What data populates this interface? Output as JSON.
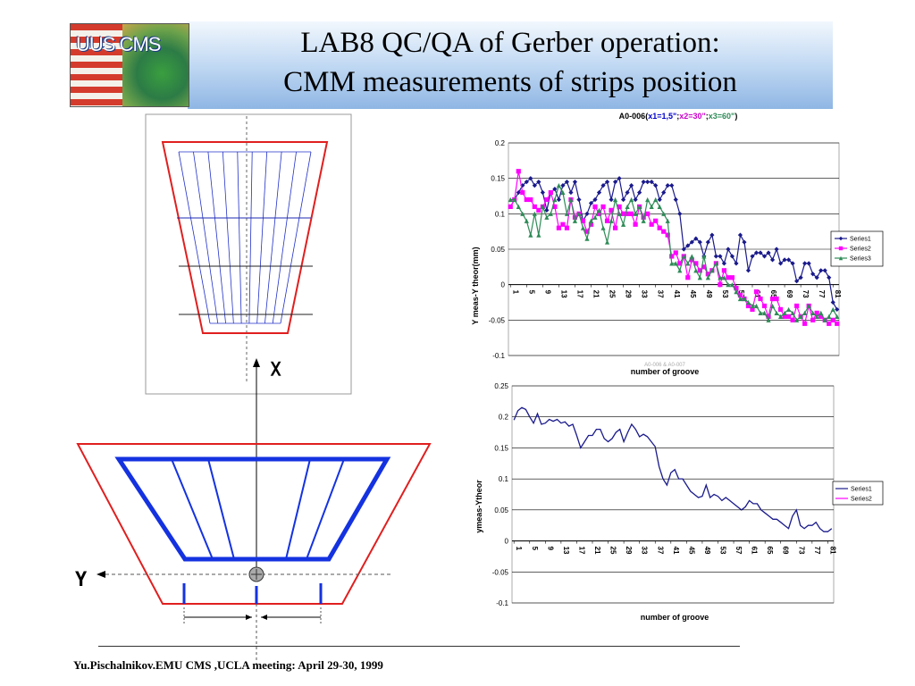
{
  "slide": {
    "title_line1": "LAB8 QC/QA of Gerber operation:",
    "title_line2": "CMM measurements of strips position",
    "footer": "Yu.Pischalnikov.EMU CMS ,UCLA meeting:  April 29-30, 1999",
    "logo_text": "UUS CMS",
    "colors": {
      "header_top": "#f2f7fd",
      "header_bottom": "#8fb6e4"
    }
  },
  "diagram": {
    "axis_x_label": "X",
    "axis_y_label": "Y",
    "colors": {
      "outline": "#e01f1f",
      "strips_thin": "#2030c8",
      "strips_thick": "#1432e0"
    }
  },
  "chart_data": [
    {
      "type": "line",
      "title_prefix": "A0-006(",
      "title_parts": [
        {
          "text": "x1=1,5\"",
          "color": "#0000cc"
        },
        {
          "text": ";",
          "color": "#000000"
        },
        {
          "text": "x2=30\"",
          "color": "#cc00cc"
        },
        {
          "text": ";",
          "color": "#000000"
        },
        {
          "text": "x3=60\"",
          "color": "#2e8b57"
        }
      ],
      "title_suffix": ")",
      "xlabel": "number of groove",
      "ylabel": "Y meas-Y theor(mm)",
      "watermark": "A0-006 & A0-007",
      "ylim": [
        -0.1,
        0.2
      ],
      "yticks": [
        "0.2",
        "0.15",
        "0.1",
        "0.05",
        "0",
        "-0.05",
        "-0.1"
      ],
      "xticks": [
        "1",
        "5",
        "9",
        "13",
        "17",
        "21",
        "25",
        "29",
        "33",
        "37",
        "41",
        "45",
        "49",
        "53",
        "57",
        "61",
        "65",
        "69",
        "73",
        "77",
        "81"
      ],
      "x_count": 82,
      "grid": true,
      "legend_position": "right",
      "series": [
        {
          "name": "Series1",
          "color": "#1a1a8c",
          "marker": "diamond",
          "values": [
            0.11,
            0.12,
            0.13,
            0.14,
            0.145,
            0.15,
            0.14,
            0.145,
            0.13,
            0.105,
            0.13,
            0.135,
            0.12,
            0.14,
            0.145,
            0.13,
            0.145,
            0.12,
            0.09,
            0.1,
            0.115,
            0.12,
            0.13,
            0.14,
            0.145,
            0.12,
            0.145,
            0.15,
            0.12,
            0.13,
            0.14,
            0.12,
            0.13,
            0.145,
            0.145,
            0.145,
            0.14,
            0.12,
            0.13,
            0.14,
            0.14,
            0.12,
            0.1,
            0.05,
            0.055,
            0.06,
            0.065,
            0.06,
            0.04,
            0.06,
            0.07,
            0.04,
            0.04,
            0.03,
            0.05,
            0.04,
            0.03,
            0.07,
            0.06,
            0.02,
            0.04,
            0.045,
            0.045,
            0.04,
            0.045,
            0.035,
            0.05,
            0.03,
            0.035,
            0.035,
            0.03,
            0.005,
            0.01,
            0.03,
            0.03,
            0.015,
            0.01,
            0.02,
            0.02,
            0.01,
            -0.025,
            -0.035
          ]
        },
        {
          "name": "Series2",
          "color": "#ff00ff",
          "marker": "square",
          "values": [
            0.11,
            0.12,
            0.16,
            0.13,
            0.12,
            0.12,
            0.11,
            0.105,
            0.11,
            0.12,
            0.13,
            0.11,
            0.08,
            0.085,
            0.08,
            0.12,
            0.095,
            0.1,
            0.09,
            0.075,
            0.085,
            0.11,
            0.1,
            0.11,
            0.09,
            0.105,
            0.08,
            0.11,
            0.1,
            0.1,
            0.1,
            0.085,
            0.11,
            0.095,
            0.1,
            0.085,
            0.09,
            0.08,
            0.075,
            0.07,
            0.04,
            0.045,
            0.03,
            0.04,
            0.01,
            0.035,
            0.03,
            0.02,
            0.025,
            0.015,
            0.02,
            0.03,
            0.0,
            0.02,
            0.01,
            0.01,
            -0.005,
            -0.015,
            -0.02,
            -0.03,
            -0.035,
            -0.01,
            -0.02,
            -0.03,
            -0.045,
            -0.02,
            -0.02,
            -0.035,
            -0.045,
            -0.045,
            -0.05,
            -0.03,
            -0.045,
            -0.055,
            -0.03,
            -0.05,
            -0.04,
            -0.045,
            -0.05,
            -0.055,
            -0.05,
            -0.055
          ]
        },
        {
          "name": "Series3",
          "color": "#2e8b57",
          "marker": "triangle",
          "values": [
            0.12,
            0.12,
            0.11,
            0.1,
            0.09,
            0.07,
            0.1,
            0.07,
            0.11,
            0.095,
            0.1,
            0.12,
            0.14,
            0.13,
            0.1,
            0.12,
            0.09,
            0.1,
            0.08,
            0.065,
            0.09,
            0.095,
            0.105,
            0.08,
            0.06,
            0.09,
            0.12,
            0.1,
            0.085,
            0.11,
            0.12,
            0.1,
            0.11,
            0.09,
            0.12,
            0.11,
            0.12,
            0.11,
            0.1,
            0.09,
            0.03,
            0.03,
            0.02,
            0.04,
            0.03,
            0.04,
            0.02,
            0.01,
            0.04,
            0.01,
            0.02,
            0.03,
            0.01,
            0.01,
            0.0,
            0.0,
            -0.01,
            -0.02,
            -0.02,
            -0.025,
            -0.03,
            -0.03,
            -0.04,
            -0.04,
            -0.05,
            -0.03,
            -0.04,
            -0.045,
            -0.04,
            -0.035,
            -0.04,
            -0.05,
            -0.045,
            -0.04,
            -0.03,
            -0.04,
            -0.045,
            -0.04,
            -0.05,
            -0.045,
            -0.035,
            -0.045
          ]
        }
      ]
    },
    {
      "type": "line",
      "title": "",
      "xlabel": "number of groove",
      "ylabel": "ymeas-Ytheor",
      "ylim": [
        -0.1,
        0.25
      ],
      "yticks": [
        "0.25",
        "0.2",
        "0.15",
        "0.1",
        "0.05",
        "0",
        "-0.05",
        "-0.1"
      ],
      "xticks": [
        "1",
        "5",
        "9",
        "13",
        "17",
        "21",
        "25",
        "29",
        "33",
        "37",
        "41",
        "45",
        "49",
        "53",
        "57",
        "61",
        "65",
        "69",
        "73",
        "77",
        "81"
      ],
      "x_count": 82,
      "grid": true,
      "legend_position": "right",
      "series": [
        {
          "name": "Series1",
          "color": "#1a1a8c",
          "values": [
            0.195,
            0.21,
            0.215,
            0.212,
            0.2,
            0.19,
            0.205,
            0.188,
            0.19,
            0.196,
            0.193,
            0.196,
            0.19,
            0.192,
            0.185,
            0.188,
            0.17,
            0.15,
            0.16,
            0.17,
            0.17,
            0.18,
            0.18,
            0.165,
            0.16,
            0.165,
            0.175,
            0.18,
            0.16,
            0.175,
            0.188,
            0.18,
            0.168,
            0.172,
            0.168,
            0.16,
            0.152,
            0.12,
            0.1,
            0.09,
            0.11,
            0.115,
            0.1,
            0.1,
            0.09,
            0.08,
            0.075,
            0.07,
            0.072,
            0.09,
            0.07,
            0.075,
            0.072,
            0.065,
            0.07,
            0.065,
            0.06,
            0.055,
            0.05,
            0.055,
            0.065,
            0.06,
            0.06,
            0.05,
            0.045,
            0.04,
            0.035,
            0.035,
            0.03,
            0.025,
            0.02,
            0.04,
            0.05,
            0.025,
            0.02,
            0.025,
            0.025,
            0.03,
            0.02,
            0.015,
            0.015,
            0.02
          ]
        },
        {
          "name": "Series2",
          "color": "#ff00ff",
          "values": []
        }
      ]
    }
  ]
}
